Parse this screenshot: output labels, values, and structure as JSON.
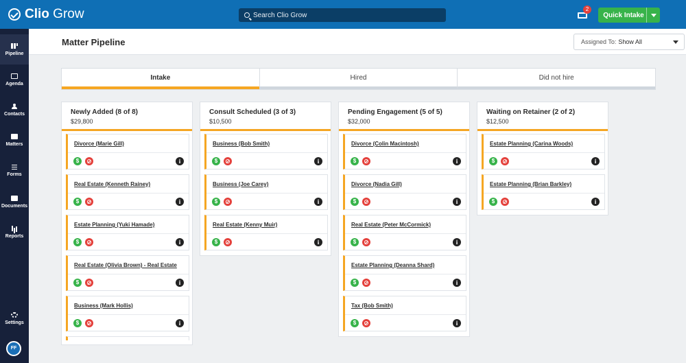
{
  "app": {
    "logo_bold": "Clio",
    "logo_light": " Grow"
  },
  "topbar": {
    "search_placeholder": "Search Clio Grow",
    "notification_count": "2",
    "quick_intake_label": "Quick Intake"
  },
  "sidebar": {
    "items": [
      {
        "label": "Pipeline",
        "icon": "pipeline-icon"
      },
      {
        "label": "Agenda",
        "icon": "calendar-icon"
      },
      {
        "label": "Contacts",
        "icon": "person-icon"
      },
      {
        "label": "Matters",
        "icon": "briefcase-icon"
      },
      {
        "label": "Forms",
        "icon": "list-icon"
      },
      {
        "label": "Documents",
        "icon": "folder-icon"
      },
      {
        "label": "Reports",
        "icon": "bar-chart-icon"
      },
      {
        "label": "Settings",
        "icon": "gear-icon"
      }
    ],
    "avatar_initials": "FF"
  },
  "header": {
    "title": "Matter Pipeline",
    "assigned_label": "Assigned To:",
    "assigned_value": "Show All"
  },
  "tabs": [
    {
      "label": "Intake",
      "active": true
    },
    {
      "label": "Hired",
      "active": false
    },
    {
      "label": "Did not hire",
      "active": false
    }
  ],
  "columns": [
    {
      "title": "Newly Added (8 of 8)",
      "total": "$29,800",
      "cards": [
        "Divorce (Marie Gill)",
        "Real Estate (Kenneth Rainey)",
        "Estate Planning (Yuki Hamade)",
        "Real Estate (Olivia Brown) - Real Estate",
        "Business (Mark Hollis)"
      ]
    },
    {
      "title": "Consult Scheduled (3 of 3)",
      "total": "$10,500",
      "cards": [
        "Business (Bob Smith)",
        "Business (Joe Carey)",
        "Real Estate (Kenny Muir)"
      ]
    },
    {
      "title": "Pending Engagement (5 of 5)",
      "total": "$32,000",
      "cards": [
        "Divorce (Colin Macintosh)",
        "Divorce (Nadia Gill)",
        "Real Estate (Peter McCormick)",
        "Estate Planning (Deanna Shard)",
        "Tax (Bob Smith)"
      ]
    },
    {
      "title": "Waiting on Retainer (2 of 2)",
      "total": "$12,500",
      "cards": [
        "Estate Planning (Carina Woods)",
        "Estate Planning (Brian Barkley)"
      ]
    }
  ],
  "card_icons": {
    "dollar": "$",
    "info": "i"
  },
  "colors": {
    "topbar": "#0f6fb5",
    "sidebar": "#17213a",
    "accent": "#f5a623",
    "green": "#37b34a",
    "red": "#e4403b"
  }
}
